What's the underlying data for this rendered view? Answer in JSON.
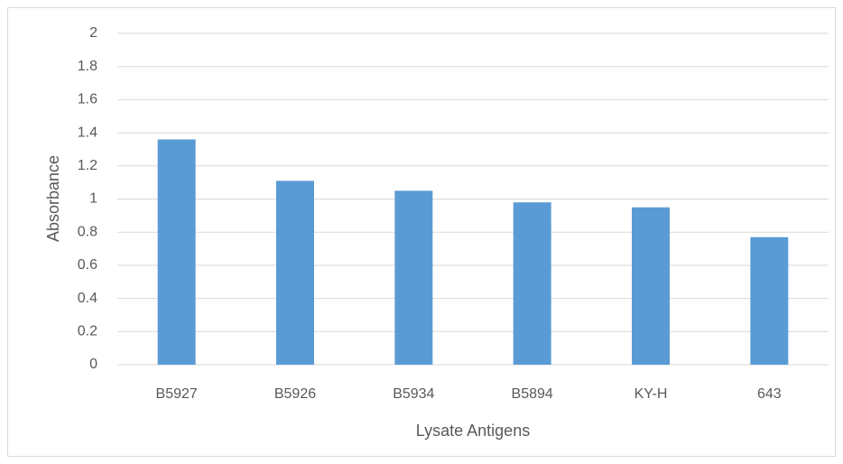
{
  "chart_data": {
    "type": "bar",
    "x_label": "Lysate Antigens",
    "y_label": "Absorbance",
    "categories": [
      "B5927",
      "B5926",
      "B5934",
      "B5894",
      "KY-H",
      "643"
    ],
    "values": [
      1.36,
      1.11,
      1.05,
      0.98,
      0.95,
      0.77
    ],
    "color": "#5b9bd5",
    "ylim": [
      0,
      2
    ],
    "yticks": [
      0,
      0.2,
      0.4,
      0.6,
      0.8,
      1,
      1.2,
      1.4,
      1.6,
      1.8,
      2
    ],
    "grid": true
  }
}
